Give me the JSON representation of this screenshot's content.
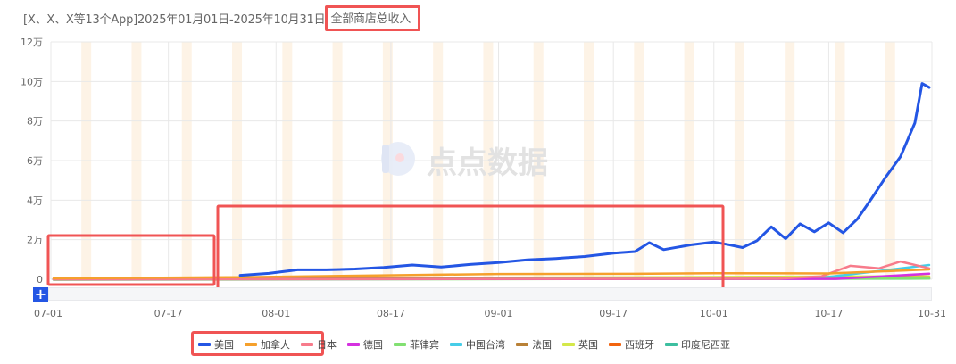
{
  "header": {
    "title_prefix": "[X、X、X等13个App]2025年01月01日-2025年10月31日",
    "title_metric": "全部商店总收入"
  },
  "watermark": {
    "text": "点点数据"
  },
  "navigator": {
    "zoom_button_label": "+"
  },
  "colors": {
    "highlight_box": "#f05454",
    "weekend_band": "#fdf3e6",
    "grid": "#e8e8e8",
    "accent_button": "#2456e4"
  },
  "legend": [
    {
      "name": "美国",
      "color": "#2456e4"
    },
    {
      "name": "加拿大",
      "color": "#f5a02c"
    },
    {
      "name": "日本",
      "color": "#f77b8b"
    },
    {
      "name": "德国",
      "color": "#d531e0"
    },
    {
      "name": "菲律宾",
      "color": "#82e072"
    },
    {
      "name": "中国台湾",
      "color": "#46cde8"
    },
    {
      "name": "法国",
      "color": "#b98137"
    },
    {
      "name": "英国",
      "color": "#d4e84a"
    },
    {
      "name": "西班牙",
      "color": "#f2640f"
    },
    {
      "name": "印度尼西亚",
      "color": "#3dbfa0"
    }
  ],
  "chart_data": {
    "type": "line",
    "title": "[X、X、X等13个App]2025年01月01日-2025年10月31日 全部商店总收入",
    "xlabel": "",
    "ylabel": "",
    "ylim": [
      0,
      120000
    ],
    "y_ticks": [
      "0",
      "2万",
      "4万",
      "6万",
      "8万",
      "10万",
      "12万"
    ],
    "y_tick_values": [
      0,
      20000,
      40000,
      60000,
      80000,
      100000,
      120000
    ],
    "x_ticks": [
      "07-01",
      "07-17",
      "08-01",
      "08-17",
      "09-01",
      "09-17",
      "10-01",
      "10-17",
      "10-31"
    ],
    "grid": true,
    "legend_position": "bottom",
    "x_range": [
      "07-01",
      "10-31"
    ],
    "series": [
      {
        "name": "美国",
        "color": "#2456e4",
        "x": [
          "07-27",
          "07-31",
          "08-04",
          "08-08",
          "08-12",
          "08-16",
          "08-20",
          "08-24",
          "08-28",
          "09-01",
          "09-05",
          "09-09",
          "09-13",
          "09-17",
          "09-20",
          "09-22",
          "09-24",
          "09-28",
          "10-01",
          "10-03",
          "10-05",
          "10-07",
          "10-09",
          "10-11",
          "10-13",
          "10-15",
          "10-17",
          "10-19",
          "10-21",
          "10-23",
          "10-25",
          "10-27",
          "10-29",
          "10-30",
          "10-31"
        ],
        "values": [
          2000,
          3000,
          4800,
          4800,
          5200,
          6000,
          7200,
          6200,
          7500,
          8500,
          9800,
          10500,
          11500,
          13200,
          14000,
          18500,
          15000,
          17500,
          18800,
          17500,
          16000,
          19500,
          26500,
          20500,
          28000,
          24000,
          28500,
          23500,
          30500,
          41000,
          52000,
          62000,
          79000,
          99000,
          97000
        ]
      },
      {
        "name": "加拿大",
        "color": "#f5a02c",
        "x": [
          "07-01",
          "07-27",
          "08-15",
          "09-01",
          "09-20",
          "10-01",
          "10-17",
          "10-31"
        ],
        "values": [
          0,
          600,
          1500,
          2200,
          2300,
          2600,
          2500,
          4500
        ]
      },
      {
        "name": "日本",
        "color": "#f77b8b",
        "x": [
          "07-01",
          "10-10",
          "10-16",
          "10-20",
          "10-24",
          "10-27",
          "10-31"
        ],
        "values": [
          0,
          300,
          1500,
          6800,
          5500,
          9000,
          5500
        ]
      },
      {
        "name": "德国",
        "color": "#d531e0",
        "x": [
          "07-01",
          "10-18",
          "10-31"
        ],
        "values": [
          0,
          200,
          2800
        ]
      },
      {
        "name": "菲律宾",
        "color": "#82e072",
        "x": [
          "07-01",
          "10-31"
        ],
        "values": [
          200,
          800
        ]
      },
      {
        "name": "中国台湾",
        "color": "#46cde8",
        "x": [
          "07-01",
          "10-15",
          "10-24",
          "10-31"
        ],
        "values": [
          0,
          300,
          4200,
          7200
        ]
      },
      {
        "name": "法国",
        "color": "#b98137",
        "x": [
          "07-01",
          "10-31"
        ],
        "values": [
          100,
          900
        ]
      },
      {
        "name": "英国",
        "color": "#d4e84a",
        "x": [
          "07-01",
          "10-31"
        ],
        "values": [
          100,
          1500
        ]
      },
      {
        "name": "西班牙",
        "color": "#f2640f",
        "x": [
          "07-01",
          "10-31"
        ],
        "values": [
          0,
          500
        ]
      },
      {
        "name": "印度尼西亚",
        "color": "#3dbfa0",
        "x": [
          "07-01",
          "10-31"
        ],
        "values": [
          0,
          300
        ]
      }
    ],
    "annotations": [
      {
        "type": "highlight-box",
        "target": "title metric '全部商店总收入'"
      },
      {
        "type": "highlight-box",
        "target": "period 07-01 to 07-27 (flat)"
      },
      {
        "type": "highlight-box",
        "target": "period 07-27 to 10-01 (gradual US growth)"
      },
      {
        "type": "highlight-box",
        "target": "legend: 美国, 加拿大, 日本"
      }
    ]
  }
}
